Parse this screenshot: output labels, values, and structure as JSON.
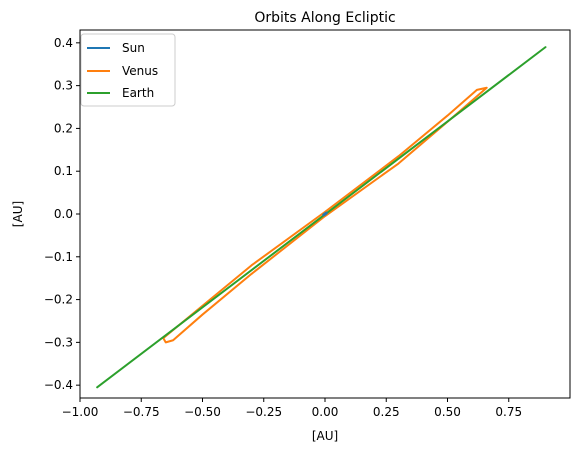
{
  "chart_data": {
    "type": "line",
    "title": "Orbits Along Ecliptic",
    "xlabel": "[AU]",
    "ylabel": "[AU]",
    "xlim": [
      -1.0,
      1.0
    ],
    "ylim": [
      -0.43,
      0.43
    ],
    "grid": false,
    "legend": "top-left",
    "x_ticks": [
      -1.0,
      -0.75,
      -0.5,
      -0.25,
      0.0,
      0.25,
      0.5,
      0.75
    ],
    "x_tick_labels": [
      "−1.00",
      "−0.75",
      "−0.50",
      "−0.25",
      "0.00",
      "0.25",
      "0.50",
      "0.75"
    ],
    "y_ticks": [
      -0.4,
      -0.3,
      -0.2,
      -0.1,
      0.0,
      0.1,
      0.2,
      0.3,
      0.4
    ],
    "y_tick_labels": [
      "−0.4",
      "−0.3",
      "−0.2",
      "−0.1",
      "0.0",
      "0.1",
      "0.2",
      "0.3",
      "0.4"
    ],
    "series": [
      {
        "name": "Sun",
        "color": "#1f77b4",
        "x": [
          -0.005,
          0.0,
          0.005
        ],
        "y": [
          -0.002,
          0.0,
          0.002
        ]
      },
      {
        "name": "Venus",
        "color": "#ff7f0e",
        "x": [
          0.66,
          0.62,
          0.5,
          0.3,
          0.0,
          -0.3,
          -0.55,
          -0.66,
          -0.65,
          -0.62,
          -0.5,
          -0.3,
          0.0,
          0.3,
          0.55,
          0.66
        ],
        "y": [
          0.295,
          0.29,
          0.23,
          0.135,
          0.005,
          -0.12,
          -0.238,
          -0.29,
          -0.3,
          -0.295,
          -0.235,
          -0.14,
          -0.005,
          0.118,
          0.24,
          0.295
        ]
      },
      {
        "name": "Earth",
        "color": "#2ca02c",
        "x": [
          -0.93,
          0.9
        ],
        "y": [
          -0.405,
          0.39
        ]
      }
    ]
  }
}
